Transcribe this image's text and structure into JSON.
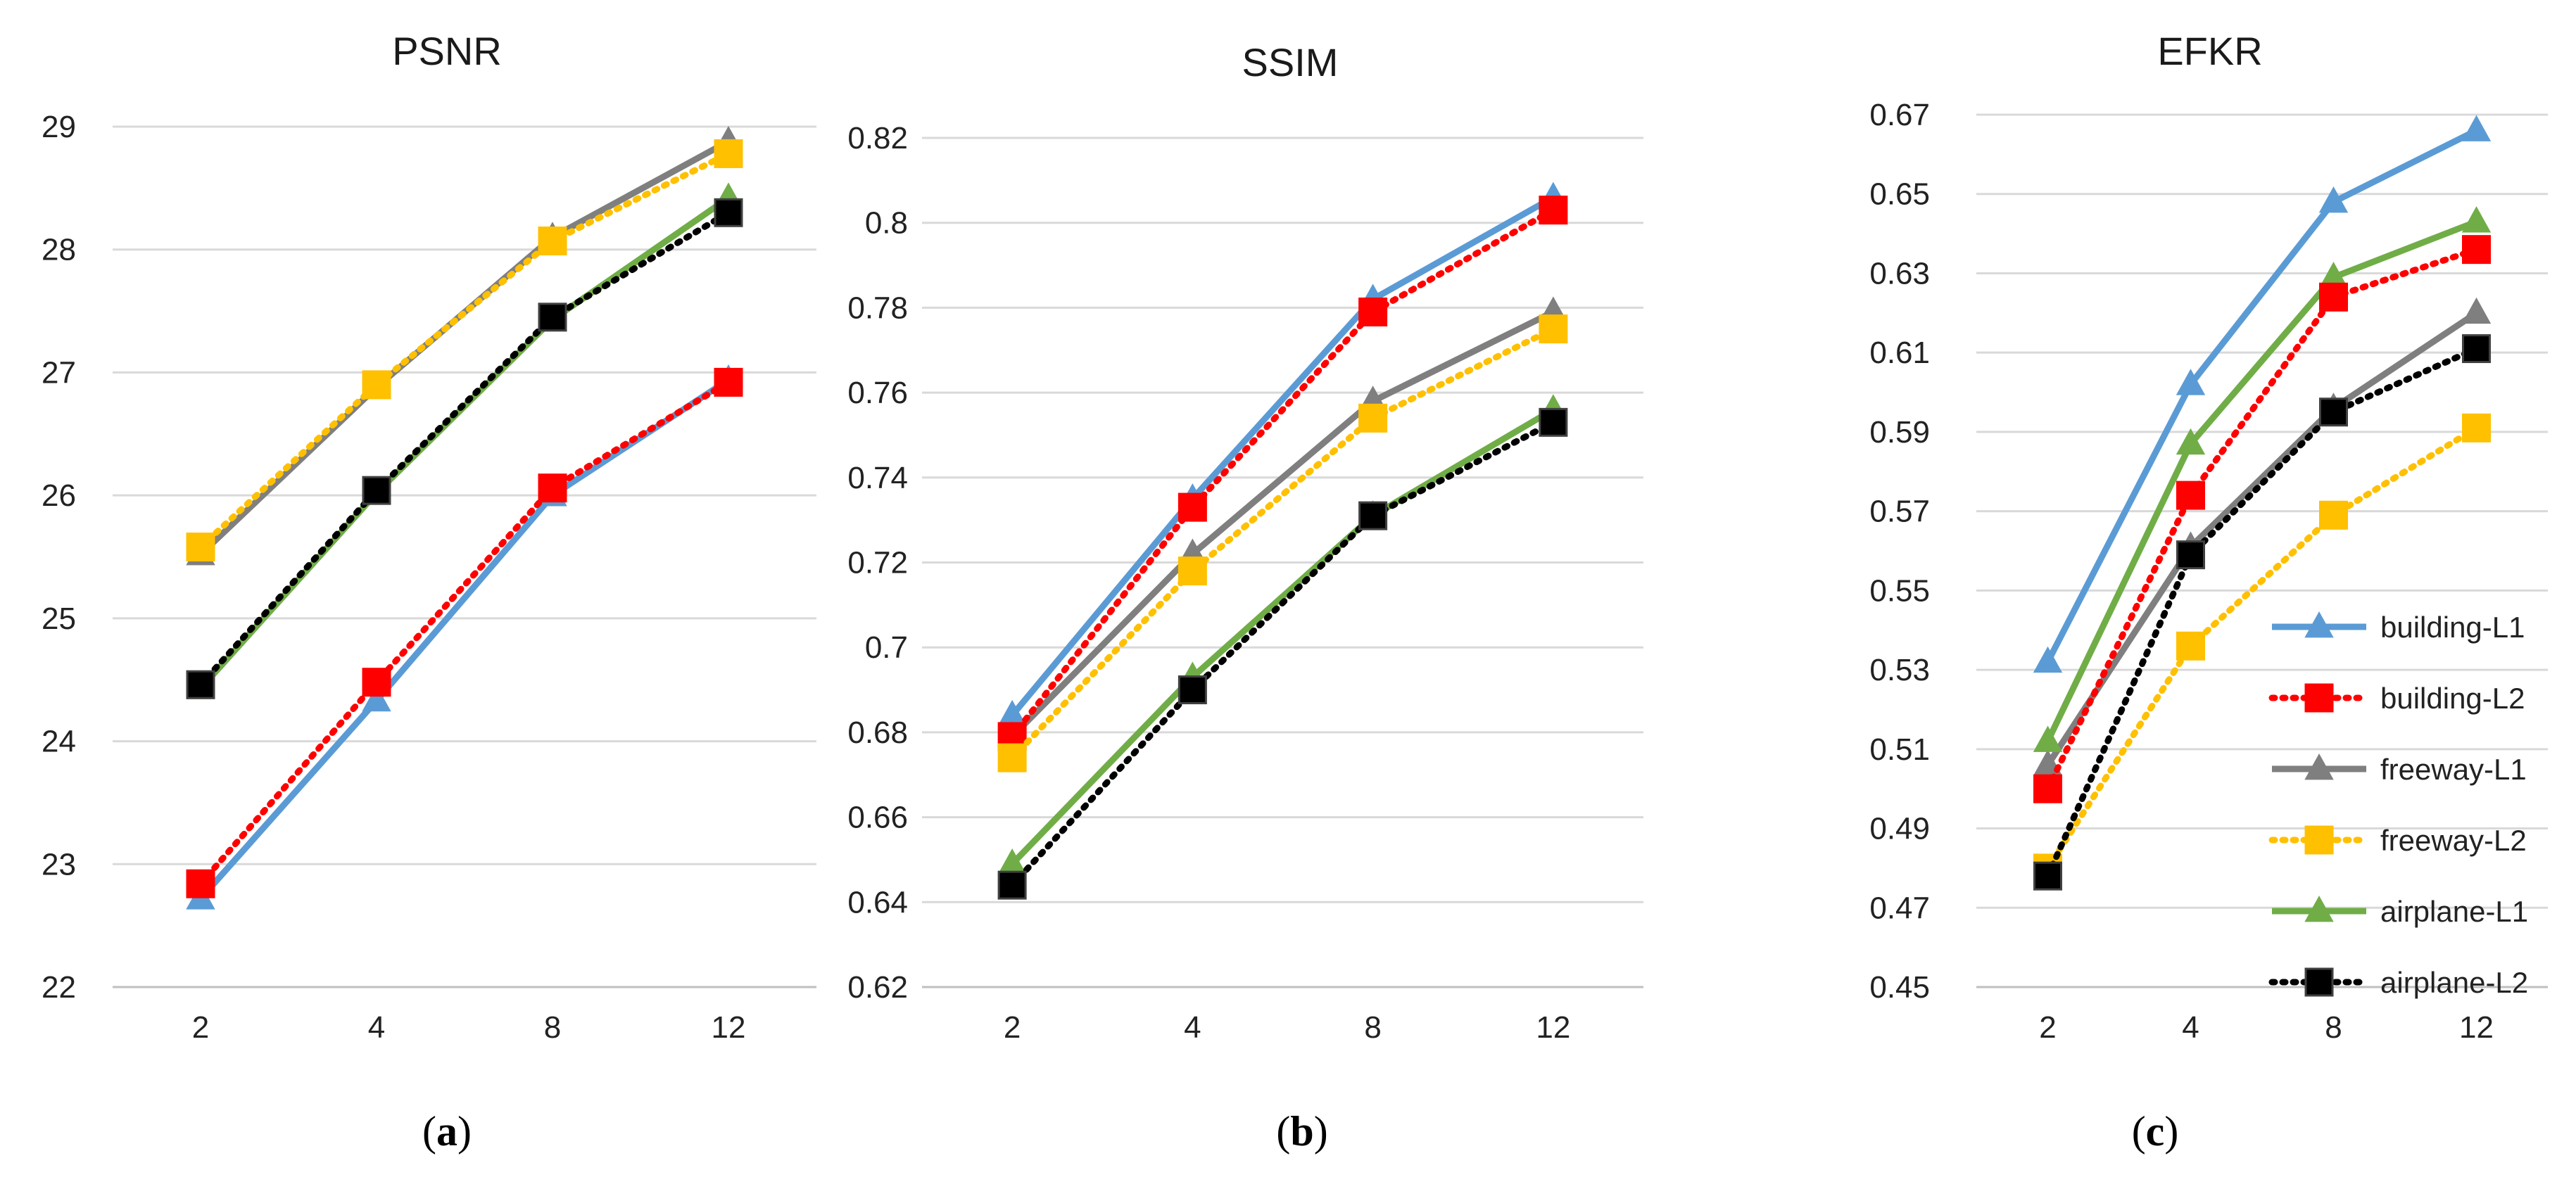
{
  "chart_data": [
    {
      "type": "line",
      "title": "PSNR",
      "panel_label": "a",
      "categories": [
        "2",
        "4",
        "8",
        "12"
      ],
      "y_tick_labels": [
        "22",
        "23",
        "24",
        "25",
        "26",
        "27",
        "28",
        "29"
      ],
      "ylim": [
        22,
        29
      ],
      "grid": true,
      "legend": false,
      "series": [
        {
          "name": "building-L1",
          "values": [
            22.72,
            24.33,
            26.0,
            26.94
          ]
        },
        {
          "name": "building-L2",
          "values": [
            22.84,
            24.48,
            26.06,
            26.92
          ]
        },
        {
          "name": "freeway-L1",
          "values": [
            25.52,
            26.88,
            28.1,
            28.88
          ]
        },
        {
          "name": "freeway-L2",
          "values": [
            25.58,
            26.9,
            28.07,
            28.78
          ]
        },
        {
          "name": "airplane-L1",
          "values": [
            24.43,
            26.02,
            27.43,
            28.42
          ]
        },
        {
          "name": "airplane-L2",
          "values": [
            24.46,
            26.04,
            27.45,
            28.3
          ]
        }
      ]
    },
    {
      "type": "line",
      "title": "SSIM",
      "panel_label": "b",
      "categories": [
        "2",
        "4",
        "8",
        "12"
      ],
      "y_tick_labels": [
        "0.62",
        "0.64",
        "0.66",
        "0.68",
        "0.7",
        "0.72",
        "0.74",
        "0.76",
        "0.78",
        "0.8",
        "0.82"
      ],
      "ylim": [
        0.62,
        0.82
      ],
      "grid": true,
      "legend": false,
      "series": [
        {
          "name": "building-L1",
          "values": [
            0.684,
            0.735,
            0.782,
            0.806
          ]
        },
        {
          "name": "building-L2",
          "values": [
            0.679,
            0.733,
            0.779,
            0.803
          ]
        },
        {
          "name": "freeway-L1",
          "values": [
            0.679,
            0.722,
            0.758,
            0.779
          ]
        },
        {
          "name": "freeway-L2",
          "values": [
            0.674,
            0.718,
            0.754,
            0.775
          ]
        },
        {
          "name": "airplane-L1",
          "values": [
            0.649,
            0.693,
            0.731,
            0.756
          ]
        },
        {
          "name": "airplane-L2",
          "values": [
            0.644,
            0.69,
            0.731,
            0.753
          ]
        }
      ]
    },
    {
      "type": "line",
      "title": "EFKR",
      "panel_label": "c",
      "categories": [
        "2",
        "4",
        "8",
        "12"
      ],
      "y_tick_labels": [
        "0.45",
        "0.47",
        "0.49",
        "0.51",
        "0.53",
        "0.55",
        "0.57",
        "0.59",
        "0.61",
        "0.63",
        "0.65",
        "0.67"
      ],
      "ylim": [
        0.45,
        0.67
      ],
      "grid": true,
      "legend": true,
      "legend_position": "bottom-right",
      "series": [
        {
          "name": "building-L1",
          "values": [
            0.532,
            0.602,
            0.648,
            0.666
          ]
        },
        {
          "name": "building-L2",
          "values": [
            0.5,
            0.574,
            0.624,
            0.636
          ]
        },
        {
          "name": "freeway-L1",
          "values": [
            0.506,
            0.561,
            0.596,
            0.62
          ]
        },
        {
          "name": "freeway-L2",
          "values": [
            0.48,
            0.536,
            0.569,
            0.591
          ]
        },
        {
          "name": "airplane-L1",
          "values": [
            0.512,
            0.587,
            0.629,
            0.643
          ]
        },
        {
          "name": "airplane-L2",
          "values": [
            0.478,
            0.559,
            0.595,
            0.611
          ]
        }
      ]
    }
  ],
  "series_styles": [
    {
      "name": "building-L1",
      "color": "#5b9bd5",
      "dash": "solid",
      "marker": "triangle"
    },
    {
      "name": "building-L2",
      "color": "#ff0000",
      "dash": "dotted",
      "marker": "square"
    },
    {
      "name": "freeway-L1",
      "color": "#7f7f7f",
      "dash": "solid",
      "marker": "triangle"
    },
    {
      "name": "freeway-L2",
      "color": "#ffc000",
      "dash": "dotted",
      "marker": "square"
    },
    {
      "name": "airplane-L1",
      "color": "#70ad47",
      "dash": "solid",
      "marker": "triangle"
    },
    {
      "name": "airplane-L2",
      "color": "#000000",
      "dash": "dotted",
      "marker": "square"
    }
  ],
  "colors": {
    "grid": "#d9d9d9",
    "text": "#222222",
    "axis": "#bfbfbf",
    "square_stroke": "#404040"
  }
}
